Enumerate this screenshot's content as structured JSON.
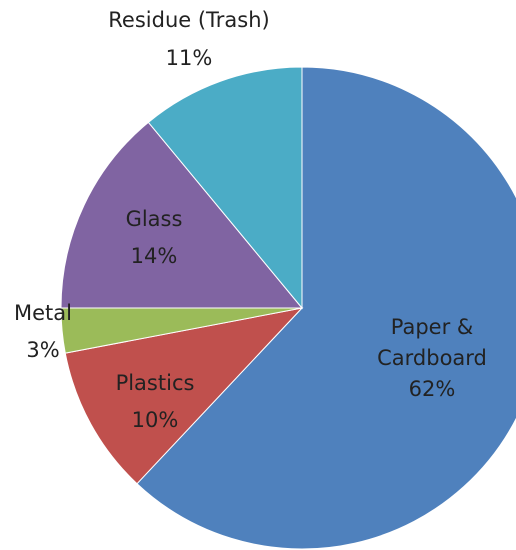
{
  "chart_data": {
    "type": "pie",
    "title": "",
    "categories": [
      "Paper & Cardboard",
      "Plastics",
      "Metal",
      "Glass",
      "Residue (Trash)"
    ],
    "values": [
      62,
      10,
      3,
      14,
      11
    ],
    "value_labels": [
      "62%",
      "10%",
      "3%",
      "14%",
      "11%"
    ],
    "start_angle_deg": 0,
    "direction": "clockwise",
    "colors": [
      "#4f81bd",
      "#c0504d",
      "#9bbb59",
      "#8064a2",
      "#4bacc6"
    ],
    "legend": "none",
    "data_labels": [
      {
        "name": "Paper & Cardboard",
        "lines": [
          "Paper &",
          "Cardboard"
        ],
        "percent": "62%",
        "placement": "inside"
      },
      {
        "name": "Plastics",
        "lines": [
          "Plastics"
        ],
        "percent": "10%",
        "placement": "inside"
      },
      {
        "name": "Metal",
        "lines": [
          "Metal"
        ],
        "percent": "3%",
        "placement": "outside"
      },
      {
        "name": "Glass",
        "lines": [
          "Glass"
        ],
        "percent": "14%",
        "placement": "inside"
      },
      {
        "name": "Residue (Trash)",
        "lines": [
          "Residue (Trash)"
        ],
        "percent": "11%",
        "placement": "outside"
      }
    ]
  }
}
